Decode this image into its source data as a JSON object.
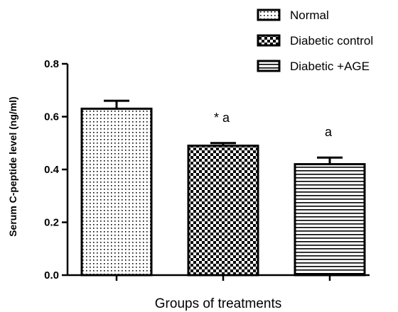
{
  "chart_data": {
    "type": "bar",
    "categories": [
      "Normal",
      "Diabetic control",
      "Diabetic +AGE"
    ],
    "series": [
      {
        "values": [
          0.63,
          0.49,
          0.42
        ],
        "errors": [
          0.03,
          0.01,
          0.025
        ]
      }
    ],
    "patterns": [
      "dots",
      "checker",
      "horizontal-lines"
    ],
    "legend_labels": [
      "Normal",
      "Diabetic control",
      "Diabetic +AGE"
    ],
    "legend_position": "top-right",
    "annotations": [
      "",
      "* a",
      "a"
    ],
    "xlabel": "Groups of treatments",
    "ylabel": "Serum C-peptide level (ng/ml)",
    "ylim": [
      0,
      0.8
    ],
    "yticks": [
      "0.0",
      "0.2",
      "0.4",
      "0.6",
      "0.8"
    ],
    "grid": false,
    "colors": {
      "bar_outline": "#000000",
      "fill": "#ffffff",
      "pattern": "#000000"
    }
  }
}
